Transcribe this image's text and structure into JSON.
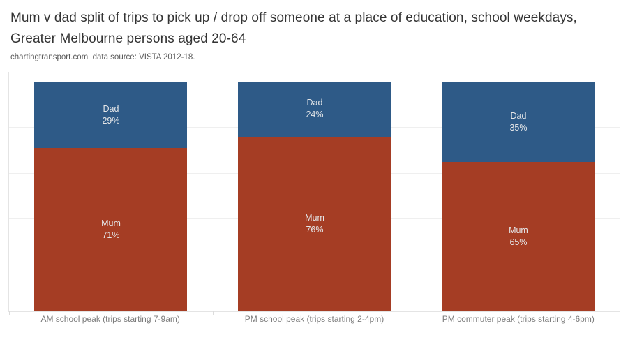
{
  "header": {
    "title": "Mum v dad split of trips to pick up / drop off someone at a place of education, school weekdays, Greater Melbourne persons aged 20-64",
    "subtitle": "chartingtransport.com  data source: VISTA 2012-18."
  },
  "colors": {
    "dad_blue": "#2e5a87",
    "mum_red": "#a53d24",
    "segment_label_text": "#e4e6e8",
    "gridline": "#efefef",
    "axis_line": "#e4e4e4",
    "category_label_text": "#7c7c7c"
  },
  "chart_data": {
    "type": "bar",
    "subtype": "100-percent-stacked-vertical",
    "title": "Mum v dad split of trips to pick up / drop off someone at a place of education, school weekdays, Greater Melbourne persons aged 20-64",
    "subtitle": "chartingtransport.com  data source: VISTA 2012-18.",
    "categories": [
      "AM school peak (trips starting 7-9am)",
      "PM school peak (trips starting 2-4pm)",
      "PM commuter peak (trips starting 4-6pm)"
    ],
    "series": [
      {
        "name": "Dad",
        "color": "#2e5a87",
        "values": [
          29,
          24,
          35
        ],
        "labels": [
          "29%",
          "24%",
          "35%"
        ]
      },
      {
        "name": "Mum",
        "color": "#a53d24",
        "values": [
          71,
          76,
          65
        ],
        "labels": [
          "71%",
          "76%",
          "65%"
        ]
      }
    ],
    "xlabel": "",
    "ylabel": "",
    "ylim": [
      0,
      100
    ],
    "grid": "horizontal gridlines at 20% intervals",
    "legend": "none (series labels drawn inside segments)",
    "label_position": "inside segment, two lines: series name then percent"
  }
}
